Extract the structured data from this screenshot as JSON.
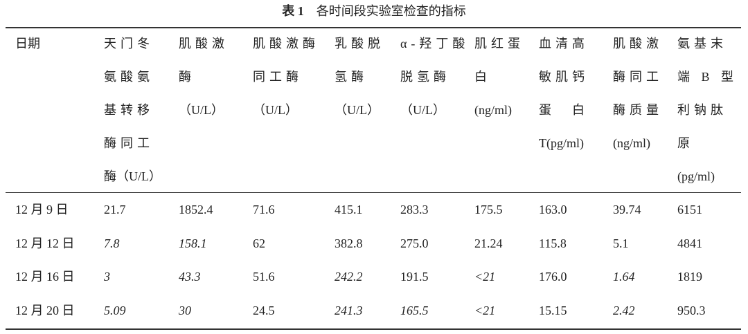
{
  "title": {
    "label": "表 1",
    "text": "各时间段实验室检查的指标"
  },
  "table": {
    "header": [
      [
        "日期"
      ],
      [
        "天门冬",
        "氨酸氨",
        "基转移",
        "酶同工",
        "酶（U/L）"
      ],
      [
        "肌酸激",
        "酶",
        "（U/L）"
      ],
      [
        "肌酸激酶",
        "同工酶",
        "（U/L）"
      ],
      [
        "乳酸脱",
        "氢酶",
        "（U/L）"
      ],
      [
        "α-羟丁酸",
        "脱氢酶",
        "（U/L）"
      ],
      [
        "肌红蛋",
        "白",
        "(ng/ml)"
      ],
      [
        "血清高",
        "敏肌钙",
        "蛋　白",
        "T(pg/ml)"
      ],
      [
        "肌酸激",
        "酶同工",
        "酶质量",
        "(ng/ml)"
      ],
      [
        "氨基末",
        "端 B 型",
        "利钠肽",
        "原",
        "(pg/ml)"
      ]
    ],
    "rows": [
      [
        "12 月 9 日",
        "21.7",
        "1852.4",
        "71.6",
        "415.1",
        "283.3",
        "175.5",
        "163.0",
        "39.74",
        "6151"
      ],
      [
        "12 月 12 日",
        "7.8",
        "158.1",
        "62",
        "382.8",
        "275.0",
        "21.24",
        "115.8",
        "5.1",
        "4841"
      ],
      [
        "12 月 16 日",
        "3",
        "43.3",
        "51.6",
        "242.2",
        "191.5",
        "<21",
        "176.0",
        "1.64",
        "1819"
      ],
      [
        "12 月 20 日",
        "5.09",
        "30",
        "24.5",
        "241.3",
        "165.5",
        "<21",
        "15.15",
        "2.42",
        "950.3"
      ]
    ],
    "italic": [
      [],
      [
        1,
        2
      ],
      [
        1,
        2,
        4,
        6,
        8
      ],
      [
        1,
        2,
        4,
        5,
        6,
        8
      ]
    ]
  }
}
